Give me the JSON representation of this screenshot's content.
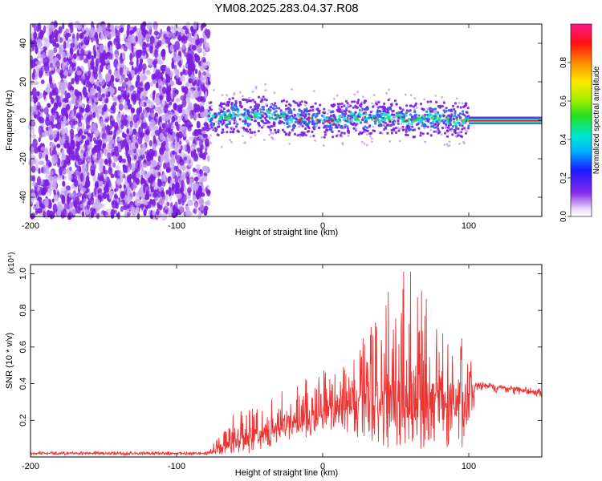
{
  "title": "YM08.2025.283.04.37.R08",
  "colors": {
    "spec_dot": "#7a1fe0",
    "spec_faint": "#c8a6f0",
    "spec_mid": "#2c6cf0",
    "spec_cyan": "#1ee0d8",
    "spec_green": "#3cd23c",
    "spec_red": "#e82020",
    "snr_line": "#ee3333"
  },
  "chart_data": [
    {
      "type": "heatmap",
      "name": "spectrogram",
      "xlabel": "Height of straight line (km)",
      "ylabel": "Frequency (Hz)",
      "xlim": [
        -200,
        150
      ],
      "ylim": [
        -50,
        50
      ],
      "xticks": [
        "-200",
        "-100",
        "0",
        "100"
      ],
      "xtick_values": [
        -200,
        -100,
        0,
        100
      ],
      "yticks": [
        "-40",
        "-20",
        "0",
        "20",
        "40"
      ],
      "ytick_values": [
        -40,
        -20,
        0,
        20,
        40
      ],
      "noise_region_km": [
        -200,
        -78
      ],
      "signal_region_km": [
        -78,
        100
      ],
      "tone_region_km": [
        100,
        150
      ],
      "tone_frequency_hz": 0,
      "ridge_frequency_hz": [
        [
          -78,
          2
        ],
        [
          -70,
          1
        ],
        [
          -60,
          3
        ],
        [
          -50,
          2
        ],
        [
          -40,
          4
        ],
        [
          -30,
          2
        ],
        [
          -20,
          1
        ],
        [
          -10,
          1
        ],
        [
          0,
          0
        ],
        [
          10,
          0
        ],
        [
          20,
          2
        ],
        [
          30,
          1
        ],
        [
          40,
          1
        ],
        [
          50,
          2
        ],
        [
          60,
          0
        ],
        [
          70,
          1
        ],
        [
          80,
          1
        ],
        [
          90,
          0
        ],
        [
          100,
          0
        ]
      ],
      "ridge_halfwidth_hz": 5,
      "colorbar": {
        "label": "Normalized spectral amplitude",
        "range": [
          0,
          1
        ],
        "ticks": [
          "0.0",
          "0.2",
          "0.4",
          "0.6",
          "0.8"
        ],
        "tick_values": [
          0,
          0.2,
          0.4,
          0.6,
          0.8
        ]
      }
    },
    {
      "type": "line",
      "name": "snr",
      "xlabel": "Height of straight line (km)",
      "ylabel": "SNR (10 * v/v)",
      "y_scale_label": "(x10⁴)",
      "xlim": [
        -200,
        150
      ],
      "ylim": [
        0,
        1.05
      ],
      "xticks": [
        "-200",
        "-100",
        "0",
        "100"
      ],
      "xtick_values": [
        -200,
        -100,
        0,
        100
      ],
      "yticks": [
        "0.2",
        "0.4",
        "0.6",
        "0.8",
        "1.0"
      ],
      "ytick_values": [
        0.2,
        0.4,
        0.6,
        0.8,
        1.0
      ],
      "series": [
        {
          "name": "SNR",
          "x": [
            -200,
            -150,
            -100,
            -80,
            -70,
            -60,
            -50,
            -40,
            -30,
            -20,
            -10,
            0,
            10,
            20,
            30,
            40,
            50,
            60,
            70,
            80,
            90,
            100,
            105,
            110,
            130,
            150
          ],
          "base": [
            0.02,
            0.02,
            0.02,
            0.02,
            0.04,
            0.08,
            0.11,
            0.13,
            0.15,
            0.18,
            0.2,
            0.25,
            0.28,
            0.3,
            0.32,
            0.34,
            0.34,
            0.32,
            0.32,
            0.32,
            0.3,
            0.3,
            0.4,
            0.39,
            0.37,
            0.35
          ],
          "peak": [
            0.03,
            0.03,
            0.03,
            0.03,
            0.12,
            0.25,
            0.27,
            0.28,
            0.35,
            0.4,
            0.45,
            0.48,
            0.45,
            0.55,
            0.7,
            0.85,
            0.98,
            1.05,
            0.9,
            0.8,
            0.7,
            0.6,
            0.42,
            0.41,
            0.39,
            0.37
          ],
          "low": [
            0.01,
            0.01,
            0.01,
            0.01,
            0.01,
            0.02,
            0.02,
            0.05,
            0.05,
            0.1,
            0.1,
            0.12,
            0.15,
            0.1,
            0.08,
            0.05,
            0.05,
            0.03,
            0.03,
            0.03,
            0.04,
            0.05,
            0.36,
            0.36,
            0.34,
            0.33
          ]
        }
      ]
    }
  ]
}
